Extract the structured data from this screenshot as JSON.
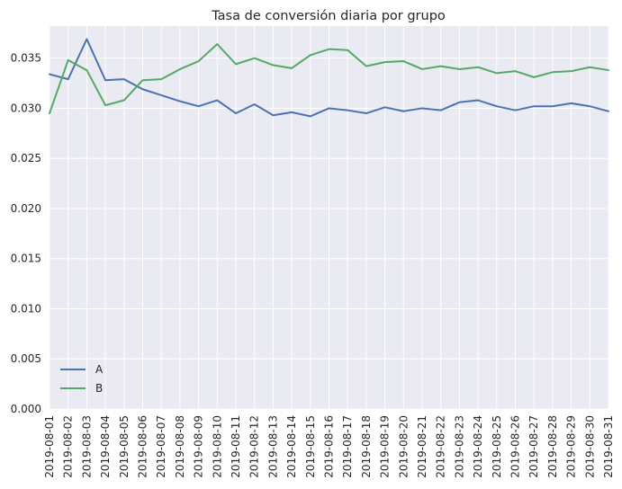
{
  "chart_data": {
    "type": "line",
    "title": "Tasa de conversión diaria por grupo",
    "xlabel": "",
    "ylabel": "",
    "x": [
      "2019-08-01",
      "2019-08-02",
      "2019-08-03",
      "2019-08-04",
      "2019-08-05",
      "2019-08-06",
      "2019-08-07",
      "2019-08-08",
      "2019-08-09",
      "2019-08-10",
      "2019-08-11",
      "2019-08-12",
      "2019-08-13",
      "2019-08-14",
      "2019-08-15",
      "2019-08-16",
      "2019-08-17",
      "2019-08-18",
      "2019-08-19",
      "2019-08-20",
      "2019-08-21",
      "2019-08-22",
      "2019-08-23",
      "2019-08-24",
      "2019-08-25",
      "2019-08-26",
      "2019-08-27",
      "2019-08-28",
      "2019-08-29",
      "2019-08-30",
      "2019-08-31"
    ],
    "ylim": [
      0,
      0.0382
    ],
    "yticks": [
      0.0,
      0.005,
      0.01,
      0.015,
      0.02,
      0.025,
      0.03,
      0.035
    ],
    "ytick_labels": [
      "0.000",
      "0.005",
      "0.010",
      "0.015",
      "0.020",
      "0.025",
      "0.030",
      "0.035"
    ],
    "grid": true,
    "legend_position": "lower-left",
    "series": [
      {
        "name": "A",
        "color": "#4c72b0",
        "values": [
          0.0334,
          0.0329,
          0.0369,
          0.0328,
          0.0329,
          0.0319,
          0.0313,
          0.0307,
          0.0302,
          0.0308,
          0.0295,
          0.0304,
          0.0293,
          0.0296,
          0.0292,
          0.03,
          0.0298,
          0.0295,
          0.0301,
          0.0297,
          0.03,
          0.0298,
          0.0306,
          0.0308,
          0.0302,
          0.0298,
          0.0302,
          0.0302,
          0.0305,
          0.0302,
          0.0297
        ]
      },
      {
        "name": "B",
        "color": "#55a868",
        "values": [
          0.0295,
          0.0348,
          0.0338,
          0.0303,
          0.0308,
          0.0328,
          0.0329,
          0.0339,
          0.0347,
          0.0364,
          0.0344,
          0.035,
          0.0343,
          0.034,
          0.0353,
          0.0359,
          0.0358,
          0.0342,
          0.0346,
          0.0347,
          0.0339,
          0.0342,
          0.0339,
          0.0341,
          0.0335,
          0.0337,
          0.0331,
          0.0336,
          0.0337,
          0.0341,
          0.0338
        ]
      }
    ]
  },
  "style": {
    "background": "#eaeaf2",
    "grid_color": "#ffffff",
    "text_color": "#262626"
  }
}
